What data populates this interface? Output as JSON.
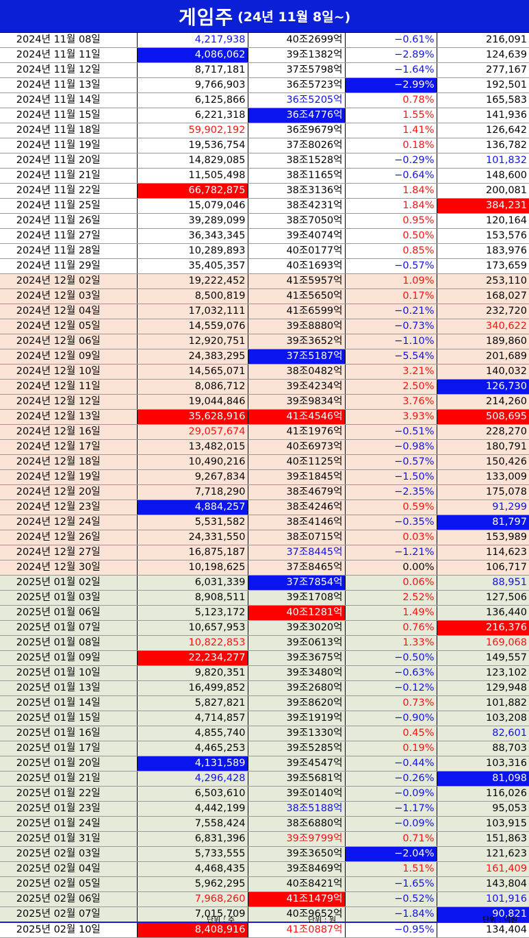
{
  "title": {
    "main": "게임주",
    "sub": "(24년 11월 8일~)"
  },
  "footer": {
    "unit_volume": "단위 : 주",
    "unit_marketcap": "단위 : 원",
    "unit_value": "단위 : 억원"
  },
  "colors": {
    "title_bg": "#0a1fd6",
    "highlight_blue": "#0a14ee",
    "highlight_red": "#ff0000",
    "text_red": "#ff1111",
    "text_blue": "#1111ee",
    "band_2024_12": "#fbe4d5",
    "band_2025": "#e5ead9"
  },
  "legend": {
    "hb": "blue highlight",
    "hr": "red highlight",
    "r": "red text",
    "b": "blue text",
    "k": "black text"
  },
  "rows": [
    {
      "date": "2024년 11월 08일",
      "volume": "4,217,938",
      "marketcap": "40조2699억",
      "change": "-0.61%",
      "value": "216,091",
      "group": 1,
      "style": [
        "b",
        "k",
        "b",
        "k"
      ]
    },
    {
      "date": "2024년 11월 11일",
      "volume": "4,086,062",
      "marketcap": "39조1382억",
      "change": "-2.89%",
      "value": "124,639",
      "group": 1,
      "style": [
        "hb",
        "k",
        "b",
        "k"
      ]
    },
    {
      "date": "2024년 11월 12일",
      "volume": "8,717,181",
      "marketcap": "37조5798억",
      "change": "-1.64%",
      "value": "277,167",
      "group": 1,
      "style": [
        "k",
        "k",
        "b",
        "k"
      ]
    },
    {
      "date": "2024년 11월 13일",
      "volume": "9,766,903",
      "marketcap": "36조5723억",
      "change": "-2.99%",
      "value": "192,501",
      "group": 1,
      "style": [
        "k",
        "k",
        "hb",
        "k"
      ]
    },
    {
      "date": "2024년 11월 14일",
      "volume": "6,125,866",
      "marketcap": "36조5205억",
      "change": "0.78%",
      "value": "165,583",
      "group": 1,
      "style": [
        "k",
        "b",
        "r",
        "k"
      ]
    },
    {
      "date": "2024년 11월 15일",
      "volume": "6,221,318",
      "marketcap": "36조4776억",
      "change": "1.55%",
      "value": "141,936",
      "group": 1,
      "style": [
        "k",
        "hb",
        "r",
        "k"
      ]
    },
    {
      "date": "2024년 11월 18일",
      "volume": "59,902,192",
      "marketcap": "36조9679억",
      "change": "1.41%",
      "value": "126,642",
      "group": 1,
      "style": [
        "r",
        "k",
        "r",
        "k"
      ]
    },
    {
      "date": "2024년 11월 19일",
      "volume": "19,536,754",
      "marketcap": "37조8026억",
      "change": "0.18%",
      "value": "136,782",
      "group": 1,
      "style": [
        "k",
        "k",
        "r",
        "k"
      ]
    },
    {
      "date": "2024년 11월 20일",
      "volume": "14,829,085",
      "marketcap": "38조1528억",
      "change": "-0.29%",
      "value": "101,832",
      "group": 1,
      "style": [
        "k",
        "k",
        "b",
        "b"
      ]
    },
    {
      "date": "2024년 11월 21일",
      "volume": "11,505,498",
      "marketcap": "38조1165억",
      "change": "-0.64%",
      "value": "148,600",
      "group": 1,
      "style": [
        "k",
        "k",
        "b",
        "k"
      ]
    },
    {
      "date": "2024년 11월 22일",
      "volume": "66,782,875",
      "marketcap": "38조3136억",
      "change": "1.84%",
      "value": "200,081",
      "group": 1,
      "style": [
        "hr",
        "k",
        "r",
        "k"
      ]
    },
    {
      "date": "2024년 11월 25일",
      "volume": "15,079,046",
      "marketcap": "38조4231억",
      "change": "1.84%",
      "value": "384,231",
      "group": 1,
      "style": [
        "k",
        "k",
        "r",
        "hr"
      ]
    },
    {
      "date": "2024년 11월 26일",
      "volume": "39,289,099",
      "marketcap": "38조7050억",
      "change": "0.95%",
      "value": "120,164",
      "group": 1,
      "style": [
        "k",
        "k",
        "r",
        "k"
      ]
    },
    {
      "date": "2024년 11월 27일",
      "volume": "36,343,345",
      "marketcap": "39조4074억",
      "change": "0.50%",
      "value": "153,576",
      "group": 1,
      "style": [
        "k",
        "k",
        "r",
        "k"
      ]
    },
    {
      "date": "2024년 11월 28일",
      "volume": "10,289,893",
      "marketcap": "40조0177억",
      "change": "0.85%",
      "value": "183,976",
      "group": 1,
      "style": [
        "k",
        "k",
        "r",
        "k"
      ]
    },
    {
      "date": "2024년 11월 29일",
      "volume": "35,405,357",
      "marketcap": "40조1693억",
      "change": "-0.57%",
      "value": "173,659",
      "group": 1,
      "style": [
        "k",
        "k",
        "b",
        "k"
      ]
    },
    {
      "date": "2024년 12월 02일",
      "volume": "19,222,452",
      "marketcap": "41조5957억",
      "change": "1.09%",
      "value": "253,110",
      "group": 2,
      "style": [
        "k",
        "k",
        "r",
        "k"
      ]
    },
    {
      "date": "2024년 12월 03일",
      "volume": "8,500,819",
      "marketcap": "41조5650억",
      "change": "0.17%",
      "value": "168,027",
      "group": 2,
      "style": [
        "k",
        "k",
        "r",
        "k"
      ]
    },
    {
      "date": "2024년 12월 04일",
      "volume": "17,032,111",
      "marketcap": "41조6599억",
      "change": "-0.21%",
      "value": "232,720",
      "group": 2,
      "style": [
        "k",
        "k",
        "b",
        "k"
      ]
    },
    {
      "date": "2024년 12월 05일",
      "volume": "14,559,076",
      "marketcap": "39조8880억",
      "change": "-0.73%",
      "value": "340,622",
      "group": 2,
      "style": [
        "k",
        "k",
        "b",
        "r"
      ]
    },
    {
      "date": "2024년 12월 06일",
      "volume": "12,920,751",
      "marketcap": "39조3652억",
      "change": "-1.10%",
      "value": "189,860",
      "group": 2,
      "style": [
        "k",
        "k",
        "b",
        "k"
      ]
    },
    {
      "date": "2024년 12월 09일",
      "volume": "24,383,295",
      "marketcap": "37조5187억",
      "change": "-5.54%",
      "value": "201,689",
      "group": 2,
      "style": [
        "k",
        "hb",
        "b",
        "k"
      ]
    },
    {
      "date": "2024년 12월 10일",
      "volume": "14,565,071",
      "marketcap": "38조0482억",
      "change": "3.21%",
      "value": "140,032",
      "group": 2,
      "style": [
        "k",
        "k",
        "r",
        "k"
      ]
    },
    {
      "date": "2024년 12월 11일",
      "volume": "8,086,712",
      "marketcap": "39조4234억",
      "change": "2.50%",
      "value": "126,730",
      "group": 2,
      "style": [
        "k",
        "k",
        "r",
        "hb"
      ]
    },
    {
      "date": "2024년 12월 12일",
      "volume": "19,044,846",
      "marketcap": "39조9834억",
      "change": "3.76%",
      "value": "214,260",
      "group": 2,
      "style": [
        "k",
        "k",
        "r",
        "k"
      ]
    },
    {
      "date": "2024년 12월 13일",
      "volume": "35,628,916",
      "marketcap": "41조4546억",
      "change": "3.93%",
      "value": "508,695",
      "group": 2,
      "style": [
        "hr",
        "hr",
        "r",
        "hr"
      ]
    },
    {
      "date": "2024년 12월 16일",
      "volume": "29,057,674",
      "marketcap": "41조1976억",
      "change": "-0.51%",
      "value": "228,270",
      "group": 2,
      "style": [
        "r",
        "k",
        "b",
        "k"
      ]
    },
    {
      "date": "2024년 12월 17일",
      "volume": "13,482,015",
      "marketcap": "40조6973억",
      "change": "-0.98%",
      "value": "180,791",
      "group": 2,
      "style": [
        "k",
        "k",
        "b",
        "k"
      ]
    },
    {
      "date": "2024년 12월 18일",
      "volume": "10,490,216",
      "marketcap": "40조1125억",
      "change": "-0.57%",
      "value": "150,426",
      "group": 2,
      "style": [
        "k",
        "k",
        "b",
        "k"
      ]
    },
    {
      "date": "2024년 12월 19일",
      "volume": "9,267,834",
      "marketcap": "39조1845억",
      "change": "-1.50%",
      "value": "133,009",
      "group": 2,
      "style": [
        "k",
        "k",
        "b",
        "k"
      ]
    },
    {
      "date": "2024년 12월 20일",
      "volume": "7,718,290",
      "marketcap": "38조4679억",
      "change": "-2.35%",
      "value": "175,078",
      "group": 2,
      "style": [
        "k",
        "k",
        "b",
        "k"
      ]
    },
    {
      "date": "2024년 12월 23일",
      "volume": "4,884,257",
      "marketcap": "38조4246억",
      "change": "0.59%",
      "value": "91,299",
      "group": 2,
      "style": [
        "hb",
        "k",
        "r",
        "b"
      ]
    },
    {
      "date": "2024년 12월 24일",
      "volume": "5,531,582",
      "marketcap": "38조4146억",
      "change": "-0.35%",
      "value": "81,797",
      "group": 2,
      "style": [
        "k",
        "k",
        "b",
        "hb"
      ]
    },
    {
      "date": "2024년 12월 26일",
      "volume": "24,331,550",
      "marketcap": "38조0715억",
      "change": "0.03%",
      "value": "153,989",
      "group": 2,
      "style": [
        "k",
        "k",
        "r",
        "k"
      ]
    },
    {
      "date": "2024년 12월 27일",
      "volume": "16,875,187",
      "marketcap": "37조8445억",
      "change": "-1.21%",
      "value": "114,623",
      "group": 2,
      "style": [
        "k",
        "b",
        "b",
        "k"
      ]
    },
    {
      "date": "2024년 12월 30일",
      "volume": "10,198,625",
      "marketcap": "37조8465억",
      "change": "0.00%",
      "value": "106,717",
      "group": 2,
      "style": [
        "k",
        "k",
        "k",
        "k"
      ]
    },
    {
      "date": "2025년 01월 02일",
      "volume": "6,031,339",
      "marketcap": "37조7854억",
      "change": "0.06%",
      "value": "88,951",
      "group": 3,
      "style": [
        "k",
        "hb",
        "r",
        "b"
      ]
    },
    {
      "date": "2025년 01월 03일",
      "volume": "8,908,511",
      "marketcap": "39조1708억",
      "change": "2.52%",
      "value": "127,506",
      "group": 3,
      "style": [
        "k",
        "k",
        "r",
        "k"
      ]
    },
    {
      "date": "2025년 01월 06일",
      "volume": "5,123,172",
      "marketcap": "40조1281억",
      "change": "1.49%",
      "value": "136,440",
      "group": 3,
      "style": [
        "k",
        "hr",
        "r",
        "k"
      ]
    },
    {
      "date": "2025년 01월 07일",
      "volume": "10,657,953",
      "marketcap": "39조3020억",
      "change": "0.76%",
      "value": "216,376",
      "group": 3,
      "style": [
        "k",
        "k",
        "r",
        "hr"
      ]
    },
    {
      "date": "2025년 01월 08일",
      "volume": "10,822,853",
      "marketcap": "39조0613억",
      "change": "1.33%",
      "value": "169,068",
      "group": 3,
      "style": [
        "r",
        "k",
        "r",
        "r"
      ]
    },
    {
      "date": "2025년 01월 09일",
      "volume": "22,234,277",
      "marketcap": "39조3675억",
      "change": "-0.50%",
      "value": "149,557",
      "group": 3,
      "style": [
        "hr",
        "k",
        "b",
        "k"
      ]
    },
    {
      "date": "2025년 01월 10일",
      "volume": "9,820,351",
      "marketcap": "39조3480억",
      "change": "-0.63%",
      "value": "123,102",
      "group": 3,
      "style": [
        "k",
        "k",
        "b",
        "k"
      ]
    },
    {
      "date": "2025년 01월 13일",
      "volume": "16,499,852",
      "marketcap": "39조2680억",
      "change": "-0.12%",
      "value": "129,948",
      "group": 3,
      "style": [
        "k",
        "k",
        "b",
        "k"
      ]
    },
    {
      "date": "2025년 01월 14일",
      "volume": "5,827,821",
      "marketcap": "39조8620억",
      "change": "0.73%",
      "value": "101,882",
      "group": 3,
      "style": [
        "k",
        "k",
        "r",
        "k"
      ]
    },
    {
      "date": "2025년 01월 15일",
      "volume": "4,714,857",
      "marketcap": "39조1919억",
      "change": "-0.90%",
      "value": "103,208",
      "group": 3,
      "style": [
        "k",
        "k",
        "b",
        "k"
      ]
    },
    {
      "date": "2025년 01월 16일",
      "volume": "4,855,740",
      "marketcap": "39조1330억",
      "change": "0.45%",
      "value": "82,601",
      "group": 3,
      "style": [
        "k",
        "k",
        "r",
        "b"
      ]
    },
    {
      "date": "2025년 01월 17일",
      "volume": "4,465,253",
      "marketcap": "39조5285억",
      "change": "0.19%",
      "value": "88,703",
      "group": 3,
      "style": [
        "k",
        "k",
        "r",
        "k"
      ]
    },
    {
      "date": "2025년 01월 20일",
      "volume": "4,131,589",
      "marketcap": "39조4547억",
      "change": "-0.44%",
      "value": "103,316",
      "group": 3,
      "style": [
        "hb",
        "k",
        "b",
        "k"
      ]
    },
    {
      "date": "2025년 01월 21일",
      "volume": "4,296,428",
      "marketcap": "39조5681억",
      "change": "-0.26%",
      "value": "81,098",
      "group": 3,
      "style": [
        "b",
        "k",
        "b",
        "hb"
      ]
    },
    {
      "date": "2025년 01월 22일",
      "volume": "6,503,610",
      "marketcap": "39조0140억",
      "change": "-0.09%",
      "value": "116,026",
      "group": 3,
      "style": [
        "k",
        "k",
        "b",
        "k"
      ]
    },
    {
      "date": "2025년 01월 23일",
      "volume": "4,442,199",
      "marketcap": "38조5188억",
      "change": "-1.17%",
      "value": "95,053",
      "group": 3,
      "style": [
        "k",
        "b",
        "b",
        "k"
      ]
    },
    {
      "date": "2025년 01월 24일",
      "volume": "7,558,424",
      "marketcap": "38조6880억",
      "change": "-0.09%",
      "value": "103,915",
      "group": 3,
      "style": [
        "k",
        "k",
        "b",
        "k"
      ]
    },
    {
      "date": "2025년 01월 31일",
      "volume": "6,831,396",
      "marketcap": "39조9799억",
      "change": "0.71%",
      "value": "151,863",
      "group": 3,
      "style": [
        "k",
        "r",
        "r",
        "k"
      ]
    },
    {
      "date": "2025년 02월 03일",
      "volume": "5,733,555",
      "marketcap": "39조3650억",
      "change": "-2.04%",
      "value": "121,623",
      "group": 3,
      "style": [
        "k",
        "k",
        "hb",
        "k"
      ]
    },
    {
      "date": "2025년 02월 04일",
      "volume": "4,468,435",
      "marketcap": "39조8469억",
      "change": "1.51%",
      "value": "161,409",
      "group": 3,
      "style": [
        "k",
        "k",
        "r",
        "r"
      ]
    },
    {
      "date": "2025년 02월 05일",
      "volume": "5,962,295",
      "marketcap": "40조8421억",
      "change": "-1.65%",
      "value": "143,804",
      "group": 3,
      "style": [
        "k",
        "k",
        "b",
        "k"
      ]
    },
    {
      "date": "2025년 02월 06일",
      "volume": "7,968,260",
      "marketcap": "41조1479억",
      "change": "-0.52%",
      "value": "101,916",
      "group": 3,
      "style": [
        "r",
        "hr",
        "b",
        "b"
      ]
    },
    {
      "date": "2025년 02월 07일",
      "volume": "7,015,709",
      "marketcap": "40조9652억",
      "change": "-1.84%",
      "value": "90,821",
      "group": 3,
      "style": [
        "k",
        "k",
        "b",
        "hb"
      ]
    },
    {
      "date": "2025년 02월 10일",
      "volume": "8,408,916",
      "marketcap": "41조0887억",
      "change": "-0.95%",
      "value": "134,404",
      "group": 1,
      "last": true,
      "style": [
        "hr",
        "r",
        "b",
        "k"
      ]
    }
  ]
}
